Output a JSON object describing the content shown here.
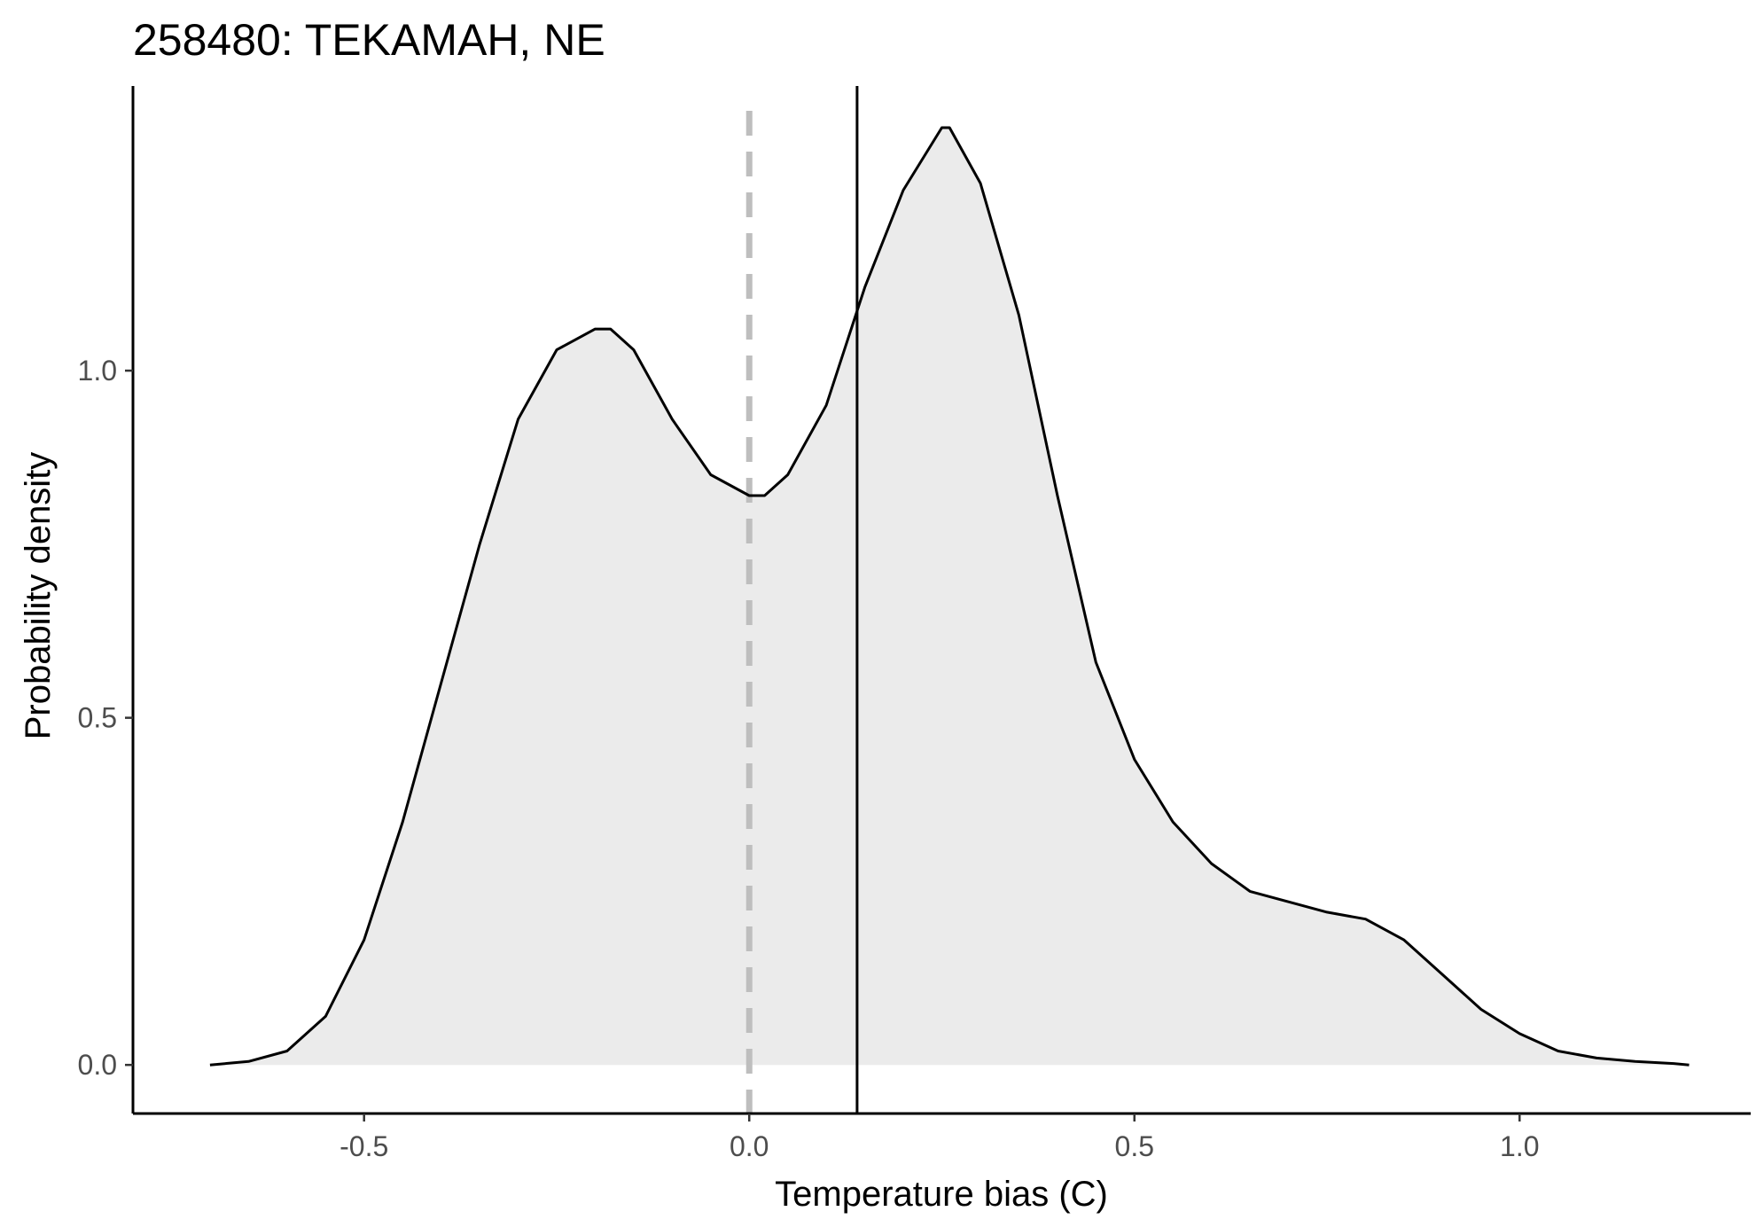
{
  "chart_data": {
    "type": "area",
    "title": "258480: TEKAMAH, NE",
    "xlabel": "Temperature bias (C)",
    "ylabel": "Probability density",
    "xlim": [
      -0.8,
      1.3
    ],
    "ylim": [
      -0.07,
      1.41
    ],
    "x_ticks": [
      {
        "value": -0.5,
        "label": "-0.5"
      },
      {
        "value": 0.0,
        "label": "0.0"
      },
      {
        "value": 0.5,
        "label": "0.5"
      },
      {
        "value": 1.0,
        "label": "1.0"
      }
    ],
    "y_ticks": [
      {
        "value": 0.0,
        "label": "0.0"
      },
      {
        "value": 0.5,
        "label": "0.5"
      },
      {
        "value": 1.0,
        "label": "1.0"
      }
    ],
    "grid": false,
    "density": {
      "x": [
        -0.7,
        -0.65,
        -0.6,
        -0.55,
        -0.5,
        -0.45,
        -0.4,
        -0.35,
        -0.3,
        -0.25,
        -0.2,
        -0.18,
        -0.15,
        -0.1,
        -0.05,
        0.0,
        0.02,
        0.05,
        0.1,
        0.15,
        0.2,
        0.25,
        0.26,
        0.3,
        0.35,
        0.4,
        0.45,
        0.5,
        0.55,
        0.6,
        0.65,
        0.7,
        0.75,
        0.8,
        0.85,
        0.9,
        0.95,
        1.0,
        1.05,
        1.1,
        1.15,
        1.2,
        1.22
      ],
      "y": [
        0.0,
        0.005,
        0.02,
        0.07,
        0.18,
        0.35,
        0.55,
        0.75,
        0.93,
        1.03,
        1.06,
        1.06,
        1.03,
        0.93,
        0.85,
        0.82,
        0.82,
        0.85,
        0.95,
        1.12,
        1.26,
        1.35,
        1.35,
        1.27,
        1.08,
        0.82,
        0.58,
        0.44,
        0.35,
        0.29,
        0.25,
        0.235,
        0.22,
        0.21,
        0.18,
        0.13,
        0.08,
        0.045,
        0.02,
        0.01,
        0.005,
        0.002,
        0.0
      ],
      "fill_color": "#ebebeb",
      "line_color": "#000000"
    },
    "reference_lines": [
      {
        "x": 0.0,
        "style": "dashed",
        "color": "#bebebe"
      },
      {
        "x": 0.14,
        "style": "solid",
        "color": "#000000"
      }
    ]
  }
}
